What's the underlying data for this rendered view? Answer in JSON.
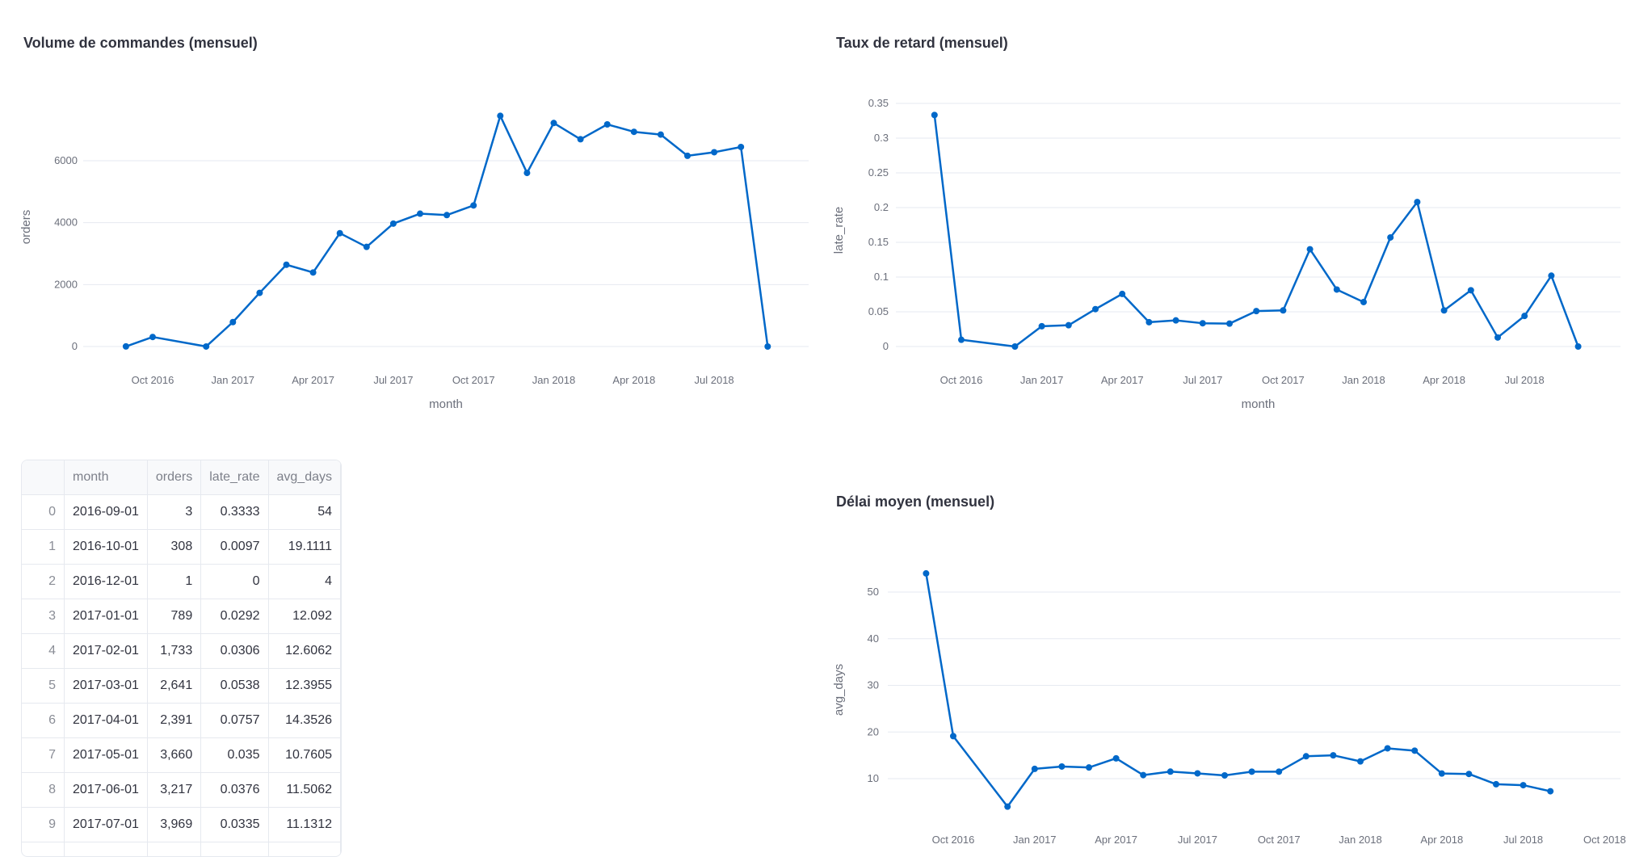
{
  "chart_data": [
    {
      "type": "line",
      "title": "Volume de commandes (mensuel)",
      "xlabel": "month",
      "ylabel": "orders",
      "x": [
        "2016-09",
        "2016-10",
        "2016-12",
        "2017-01",
        "2017-02",
        "2017-03",
        "2017-04",
        "2017-05",
        "2017-06",
        "2017-07",
        "2017-08",
        "2017-09",
        "2017-10",
        "2017-11",
        "2017-12",
        "2018-01",
        "2018-02",
        "2018-03",
        "2018-04",
        "2018-05",
        "2018-06",
        "2018-07",
        "2018-08",
        "2018-09"
      ],
      "values": [
        3,
        308,
        1,
        789,
        1733,
        2641,
        2391,
        3660,
        3217,
        3969,
        4290,
        4245,
        4557,
        7450,
        5607,
        7218,
        6693,
        7174,
        6934,
        6845,
        6160,
        6275,
        6444,
        0
      ],
      "yticks": [
        "0",
        "2000",
        "4000",
        "6000"
      ],
      "xticks": [
        "Oct 2016",
        "Jan 2017",
        "Apr 2017",
        "Jul 2017",
        "Oct 2017",
        "Jan 2018",
        "Apr 2018",
        "Jul 2018"
      ],
      "grid": true,
      "color": "#0068c9"
    },
    {
      "type": "line",
      "title": "Taux de retard (mensuel)",
      "xlabel": "month",
      "ylabel": "late_rate",
      "x": [
        "2016-09",
        "2016-10",
        "2016-12",
        "2017-01",
        "2017-02",
        "2017-03",
        "2017-04",
        "2017-05",
        "2017-06",
        "2017-07",
        "2017-08",
        "2017-09",
        "2017-10",
        "2017-11",
        "2017-12",
        "2018-01",
        "2018-02",
        "2018-03",
        "2018-04",
        "2018-05",
        "2018-06",
        "2018-07",
        "2018-08",
        "2018-09"
      ],
      "values": [
        0.3333,
        0.0097,
        0,
        0.0292,
        0.0306,
        0.0538,
        0.0757,
        0.035,
        0.0376,
        0.0335,
        0.033,
        0.051,
        0.052,
        0.14,
        0.082,
        0.064,
        0.157,
        0.208,
        0.052,
        0.081,
        0.013,
        0.044,
        0.102,
        0
      ],
      "yticks": [
        "0",
        "0.05",
        "0.1",
        "0.15",
        "0.2",
        "0.25",
        "0.3",
        "0.35"
      ],
      "xticks": [
        "Oct 2016",
        "Jan 2017",
        "Apr 2017",
        "Jul 2017",
        "Oct 2017",
        "Jan 2018",
        "Apr 2018",
        "Jul 2018"
      ],
      "grid": true,
      "color": "#0068c9"
    },
    {
      "type": "line",
      "title": "Délai moyen (mensuel)",
      "xlabel": "month",
      "ylabel": "avg_days",
      "x": [
        "2016-09",
        "2016-10",
        "2016-12",
        "2017-01",
        "2017-02",
        "2017-03",
        "2017-04",
        "2017-05",
        "2017-06",
        "2017-07",
        "2017-08",
        "2017-09",
        "2017-10",
        "2017-11",
        "2017-12",
        "2018-01",
        "2018-02",
        "2018-03",
        "2018-04",
        "2018-05",
        "2018-06",
        "2018-07",
        "2018-08"
      ],
      "values": [
        54,
        19.1111,
        4,
        12.092,
        12.6062,
        12.3955,
        14.3526,
        10.7605,
        11.5062,
        11.1312,
        10.7,
        11.5,
        11.5,
        14.8,
        15.0,
        13.7,
        16.5,
        16.0,
        11.1,
        11.0,
        8.8,
        8.6,
        7.3
      ],
      "yticks": [
        "10",
        "20",
        "30",
        "40",
        "50"
      ],
      "xticks": [
        "Oct 2016",
        "Jan 2017",
        "Apr 2017",
        "Jul 2017",
        "Oct 2017",
        "Jan 2018",
        "Apr 2018",
        "Jul 2018",
        "Oct 2018"
      ],
      "grid": true,
      "color": "#0068c9"
    }
  ],
  "table": {
    "columns": [
      "",
      "month",
      "orders",
      "late_rate",
      "avg_days"
    ],
    "rows": [
      [
        "0",
        "2016-09-01",
        "3",
        "0.3333",
        "54"
      ],
      [
        "1",
        "2016-10-01",
        "308",
        "0.0097",
        "19.1111"
      ],
      [
        "2",
        "2016-12-01",
        "1",
        "0",
        "4"
      ],
      [
        "3",
        "2017-01-01",
        "789",
        "0.0292",
        "12.092"
      ],
      [
        "4",
        "2017-02-01",
        "1,733",
        "0.0306",
        "12.6062"
      ],
      [
        "5",
        "2017-03-01",
        "2,641",
        "0.0538",
        "12.3955"
      ],
      [
        "6",
        "2017-04-01",
        "2,391",
        "0.0757",
        "14.3526"
      ],
      [
        "7",
        "2017-05-01",
        "3,660",
        "0.035",
        "10.7605"
      ],
      [
        "8",
        "2017-06-01",
        "3,217",
        "0.0376",
        "11.5062"
      ],
      [
        "9",
        "2017-07-01",
        "3,969",
        "0.0335",
        "11.1312"
      ]
    ]
  }
}
